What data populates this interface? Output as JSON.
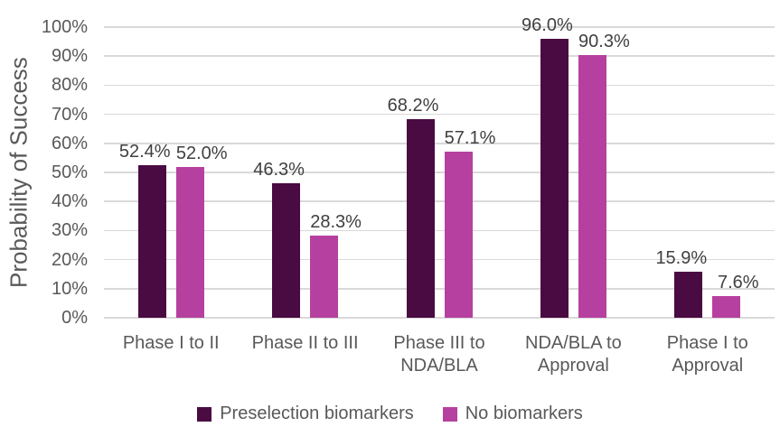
{
  "chart_data": {
    "type": "bar",
    "title": "",
    "xlabel": "",
    "ylabel": "Probability of Success",
    "ylim": [
      0,
      100
    ],
    "ytick_step": 10,
    "ytick_labels": [
      "0%",
      "10%",
      "20%",
      "30%",
      "40%",
      "50%",
      "60%",
      "70%",
      "80%",
      "90%",
      "100%"
    ],
    "grid": true,
    "legend_position": "bottom",
    "categories": [
      "Phase I to II",
      "Phase II to III",
      "Phase III to NDA/BLA",
      "NDA/BLA to Approval",
      "Phase I to Approval"
    ],
    "category_display": [
      [
        "Phase I to II"
      ],
      [
        "Phase II to III"
      ],
      [
        "Phase III to",
        "NDA/BLA"
      ],
      [
        "NDA/BLA to",
        "Approval"
      ],
      [
        "Phase I to",
        "Approval"
      ]
    ],
    "series": [
      {
        "name": "Preselection biomarkers",
        "color": "#4A0A42",
        "values": [
          52.4,
          46.3,
          68.2,
          96.0,
          15.9
        ],
        "labels": [
          "52.4%",
          "46.3%",
          "68.2%",
          "96.0%",
          "15.9%"
        ]
      },
      {
        "name": "No biomarkers",
        "color": "#B6409F",
        "values": [
          52.0,
          28.3,
          57.1,
          90.3,
          7.6
        ],
        "labels": [
          "52.0%",
          "28.3%",
          "57.1%",
          "90.3%",
          "7.6%"
        ]
      }
    ]
  },
  "colors": {
    "gridline": "#d9d9d9",
    "axis_text": "#595959",
    "data_label_text": "#404040",
    "background": "#ffffff"
  }
}
